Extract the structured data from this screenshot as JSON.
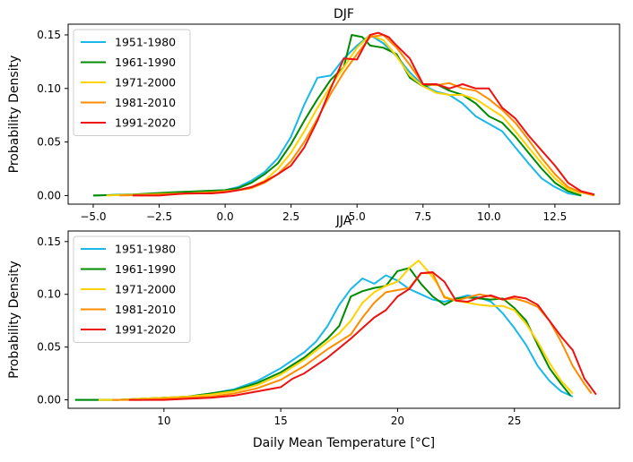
{
  "chart_data": [
    {
      "type": "line",
      "title": "DJF",
      "xlabel": "",
      "ylabel": "Probability Density",
      "xlim": [
        -5.95,
        14.95
      ],
      "ylim": [
        -0.008,
        0.16
      ],
      "xticks": [
        -5.0,
        -2.5,
        0.0,
        2.5,
        5.0,
        7.5,
        10.0,
        12.5
      ],
      "xtick_labels": [
        "−5.0",
        "−2.5",
        "0.0",
        "2.5",
        "5.0",
        "7.5",
        "10.0",
        "12.5"
      ],
      "yticks": [
        0.0,
        0.05,
        0.1,
        0.15
      ],
      "ytick_labels": [
        "0.00",
        "0.05",
        "0.10",
        "0.15"
      ],
      "legend_position": "upper-left",
      "series": [
        {
          "name": "1951-1980",
          "color": "#1ab8e8",
          "x": [
            -5.0,
            -3.5,
            -2,
            -1,
            0,
            0.5,
            1,
            1.5,
            2,
            2.5,
            3,
            3.5,
            4,
            4.5,
            5,
            5.5,
            6,
            6.5,
            7,
            7.5,
            8,
            8.5,
            9,
            9.5,
            10,
            10.5,
            11,
            11.5,
            12,
            12.5,
            13,
            13.5
          ],
          "y": [
            0.0,
            0.001,
            0.002,
            0.004,
            0.005,
            0.008,
            0.014,
            0.022,
            0.035,
            0.055,
            0.085,
            0.11,
            0.112,
            0.128,
            0.14,
            0.15,
            0.142,
            0.13,
            0.115,
            0.103,
            0.097,
            0.094,
            0.086,
            0.074,
            0.067,
            0.06,
            0.045,
            0.03,
            0.016,
            0.008,
            0.002,
            0.0
          ]
        },
        {
          "name": "1961-1990",
          "color": "#008a00",
          "x": [
            -5.0,
            -3.5,
            -2,
            -1,
            0,
            0.5,
            1,
            1.5,
            2,
            2.5,
            3,
            3.5,
            4,
            4.5,
            4.8,
            5.2,
            5.5,
            6,
            6.5,
            7,
            7.5,
            8,
            8.5,
            9,
            9.5,
            10,
            10.5,
            11,
            11.5,
            12,
            12.5,
            13,
            13.5
          ],
          "y": [
            0.0,
            0.001,
            0.003,
            0.004,
            0.005,
            0.007,
            0.012,
            0.02,
            0.03,
            0.048,
            0.07,
            0.09,
            0.108,
            0.12,
            0.15,
            0.148,
            0.14,
            0.138,
            0.132,
            0.11,
            0.102,
            0.104,
            0.098,
            0.094,
            0.086,
            0.074,
            0.068,
            0.055,
            0.04,
            0.025,
            0.012,
            0.004,
            0.0
          ]
        },
        {
          "name": "1971-2000",
          "color": "#ffd200",
          "x": [
            -4.5,
            -3,
            -1.5,
            -0.5,
            0.5,
            1,
            1.5,
            2,
            2.5,
            3,
            3.5,
            4,
            4.5,
            5,
            5.5,
            6,
            6.5,
            7,
            7.5,
            8,
            8.5,
            9,
            9.5,
            10,
            10.5,
            11,
            11.5,
            12,
            12.5,
            13,
            13.5
          ],
          "y": [
            0.0,
            0.001,
            0.002,
            0.003,
            0.005,
            0.008,
            0.014,
            0.025,
            0.04,
            0.06,
            0.082,
            0.102,
            0.12,
            0.138,
            0.15,
            0.145,
            0.13,
            0.112,
            0.102,
            0.096,
            0.094,
            0.094,
            0.09,
            0.082,
            0.074,
            0.06,
            0.045,
            0.03,
            0.016,
            0.006,
            0.002
          ]
        },
        {
          "name": "1981-2010",
          "color": "#ff8c00",
          "x": [
            -4.0,
            -2.5,
            -1,
            0,
            0.5,
            1,
            1.5,
            2,
            2.5,
            3,
            3.5,
            4,
            4.5,
            5,
            5.5,
            6,
            6.5,
            7,
            7.5,
            8,
            8.5,
            9,
            9.5,
            10,
            10.5,
            11,
            11.5,
            12,
            12.5,
            13,
            13.5,
            14
          ],
          "y": [
            0.0,
            0.001,
            0.002,
            0.004,
            0.005,
            0.007,
            0.012,
            0.02,
            0.032,
            0.05,
            0.072,
            0.095,
            0.115,
            0.132,
            0.148,
            0.15,
            0.138,
            0.122,
            0.104,
            0.103,
            0.105,
            0.1,
            0.098,
            0.09,
            0.08,
            0.068,
            0.052,
            0.035,
            0.02,
            0.008,
            0.003,
            0.0
          ]
        },
        {
          "name": "1991-2020",
          "color": "#ee1111",
          "x": [
            -3.5,
            -2.5,
            -1.5,
            -0.5,
            0,
            0.5,
            1,
            1.5,
            2,
            2.5,
            3,
            3.5,
            4,
            4.5,
            5,
            5.5,
            5.8,
            6.2,
            6.5,
            7,
            7.5,
            8,
            8.5,
            9,
            9.5,
            10,
            10.5,
            11,
            11.5,
            12,
            12.5,
            13,
            13.5,
            14
          ],
          "y": [
            0.0,
            0.0,
            0.002,
            0.002,
            0.003,
            0.005,
            0.008,
            0.013,
            0.02,
            0.028,
            0.045,
            0.07,
            0.1,
            0.128,
            0.127,
            0.15,
            0.152,
            0.148,
            0.14,
            0.128,
            0.104,
            0.104,
            0.1,
            0.104,
            0.1,
            0.1,
            0.082,
            0.072,
            0.056,
            0.042,
            0.028,
            0.012,
            0.004,
            0.001
          ]
        }
      ]
    },
    {
      "type": "line",
      "title": "JJA",
      "xlabel": "Daily Mean Temperature [°C]",
      "ylabel": "Probability Density",
      "xlim": [
        5.9,
        29.5
      ],
      "ylim": [
        -0.008,
        0.16
      ],
      "xticks": [
        10,
        15,
        20,
        25
      ],
      "xtick_labels": [
        "10",
        "15",
        "20",
        "25"
      ],
      "yticks": [
        0.0,
        0.05,
        0.1,
        0.15
      ],
      "ytick_labels": [
        "0.00",
        "0.05",
        "0.10",
        "0.15"
      ],
      "legend_position": "upper-left",
      "series": [
        {
          "name": "1951-1980",
          "color": "#1ab8e8",
          "x": [
            6.2,
            7,
            8,
            9,
            10,
            11,
            12,
            13,
            14,
            15,
            16,
            16.5,
            17,
            17.5,
            18,
            18.5,
            19,
            19.5,
            20,
            20.5,
            21,
            21.5,
            22,
            22.5,
            23,
            23.5,
            24,
            24.5,
            25,
            25.5,
            26,
            26.5,
            27,
            27.5
          ],
          "y": [
            0.0,
            0.0,
            0.0,
            0.001,
            0.002,
            0.003,
            0.006,
            0.01,
            0.018,
            0.03,
            0.045,
            0.055,
            0.07,
            0.09,
            0.105,
            0.115,
            0.11,
            0.118,
            0.113,
            0.105,
            0.1,
            0.095,
            0.093,
            0.096,
            0.099,
            0.097,
            0.093,
            0.082,
            0.068,
            0.052,
            0.032,
            0.018,
            0.008,
            0.003
          ]
        },
        {
          "name": "1961-1990",
          "color": "#008a00",
          "x": [
            6.2,
            7,
            8,
            9,
            10,
            11,
            12,
            13,
            14,
            15,
            16,
            17,
            17.5,
            18,
            18.5,
            19,
            19.5,
            20,
            20.5,
            21,
            21.5,
            22,
            22.5,
            23,
            23.5,
            24,
            24.5,
            25,
            25.5,
            26,
            26.5,
            27,
            27.4
          ],
          "y": [
            0.0,
            0.0,
            0.0,
            0.001,
            0.002,
            0.003,
            0.006,
            0.009,
            0.016,
            0.026,
            0.04,
            0.058,
            0.07,
            0.098,
            0.103,
            0.106,
            0.108,
            0.122,
            0.125,
            0.11,
            0.098,
            0.09,
            0.096,
            0.097,
            0.096,
            0.095,
            0.096,
            0.087,
            0.075,
            0.052,
            0.03,
            0.015,
            0.004
          ]
        },
        {
          "name": "1971-2000",
          "color": "#ffd200",
          "x": [
            7.2,
            8,
            9,
            10,
            11,
            12,
            13,
            14,
            15,
            16,
            17,
            17.5,
            18,
            18.5,
            19,
            19.5,
            20,
            20.5,
            20.9,
            21.3,
            21.7,
            22,
            22.5,
            23,
            23.5,
            24,
            24.5,
            25,
            25.5,
            26,
            26.5,
            27,
            27.5
          ],
          "y": [
            0.0,
            0.0,
            0.001,
            0.002,
            0.003,
            0.005,
            0.008,
            0.014,
            0.024,
            0.038,
            0.055,
            0.063,
            0.075,
            0.092,
            0.102,
            0.108,
            0.112,
            0.125,
            0.132,
            0.122,
            0.11,
            0.098,
            0.094,
            0.092,
            0.09,
            0.089,
            0.089,
            0.085,
            0.072,
            0.055,
            0.035,
            0.018,
            0.006
          ]
        },
        {
          "name": "1981-2010",
          "color": "#ff8c00",
          "x": [
            7.8,
            9,
            10,
            11,
            12,
            13,
            14,
            15,
            16,
            17,
            18,
            18.5,
            19,
            19.5,
            20,
            20.5,
            21,
            21.5,
            22,
            22.5,
            23,
            23.5,
            24,
            24.5,
            25,
            25.5,
            26,
            26.5,
            27,
            27.5,
            28,
            28.3
          ],
          "y": [
            0.0,
            0.0,
            0.001,
            0.002,
            0.003,
            0.006,
            0.011,
            0.019,
            0.032,
            0.048,
            0.062,
            0.078,
            0.092,
            0.102,
            0.104,
            0.106,
            0.12,
            0.12,
            0.097,
            0.094,
            0.097,
            0.1,
            0.098,
            0.095,
            0.096,
            0.093,
            0.088,
            0.075,
            0.055,
            0.032,
            0.015,
            0.006
          ]
        },
        {
          "name": "1991-2020",
          "color": "#ee1111",
          "x": [
            8.5,
            9,
            10,
            11,
            12,
            13,
            14,
            15,
            15.5,
            16,
            17,
            18,
            18.5,
            19,
            19.5,
            20,
            20.5,
            21,
            21.5,
            22,
            22.5,
            23,
            23.5,
            24,
            24.5,
            25,
            25.5,
            26,
            26.5,
            27,
            27.5,
            28,
            28.5
          ],
          "y": [
            0.0,
            0.0,
            0.0,
            0.001,
            0.002,
            0.004,
            0.008,
            0.012,
            0.02,
            0.025,
            0.04,
            0.058,
            0.068,
            0.078,
            0.085,
            0.098,
            0.105,
            0.12,
            0.121,
            0.112,
            0.094,
            0.093,
            0.097,
            0.099,
            0.095,
            0.098,
            0.096,
            0.09,
            0.075,
            0.06,
            0.047,
            0.02,
            0.005
          ]
        }
      ]
    }
  ]
}
